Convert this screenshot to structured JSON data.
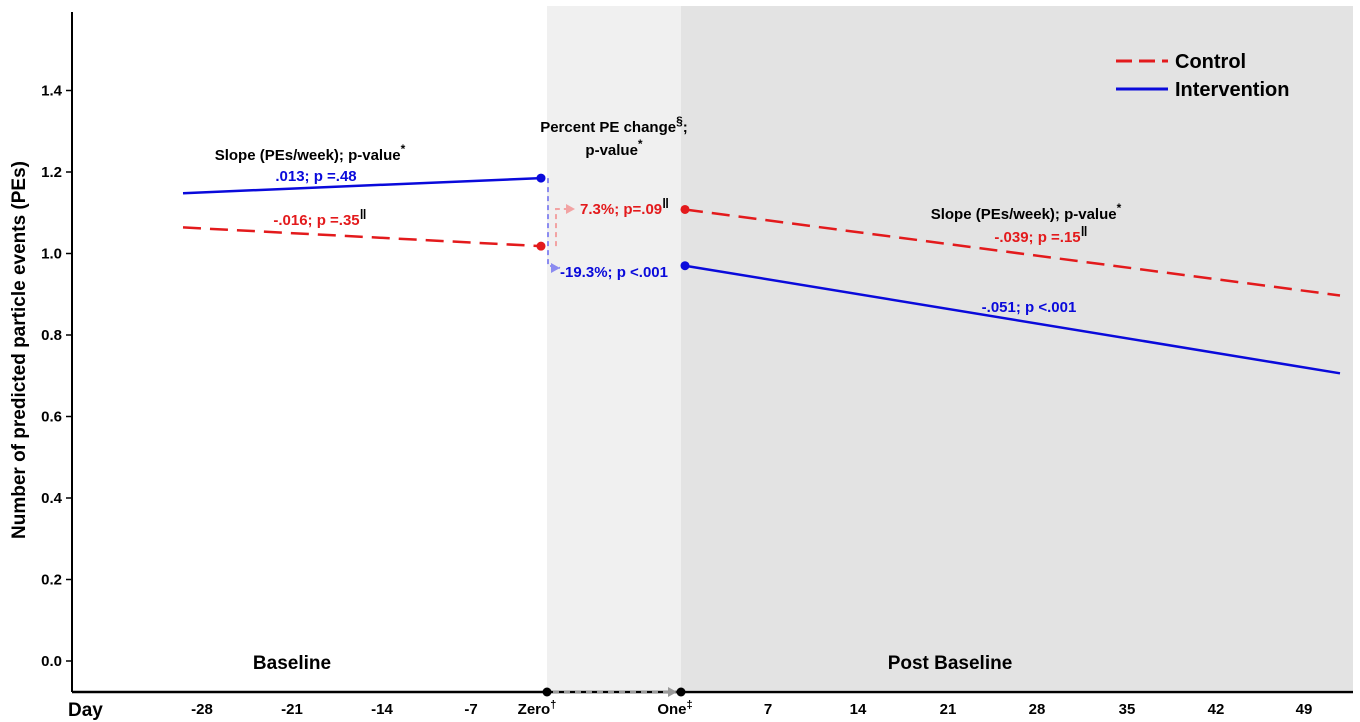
{
  "chart_data": {
    "type": "line",
    "ylabel": "Number of predicted particle events (PEs)",
    "xlabel_prefix": "Day",
    "ylim": [
      -0.07,
      1.6
    ],
    "yticks": [
      0.0,
      0.2,
      0.4,
      0.6,
      0.8,
      1.0,
      1.2,
      1.4
    ],
    "xticks_baseline": [
      -28,
      -21,
      -14,
      -7
    ],
    "xticks_post": [
      7,
      14,
      21,
      28,
      35,
      42,
      49
    ],
    "zero_label": "Zero",
    "zero_mark": "†",
    "one_label": "One",
    "one_mark": "‡",
    "regions": {
      "baseline": "Baseline",
      "post": "Post Baseline"
    },
    "legend": [
      {
        "name": "Control",
        "color": "#e31a1c",
        "dash": true
      },
      {
        "name": "Intervention",
        "color": "#0a0adb",
        "dash": false
      }
    ],
    "series": [
      {
        "name": "Control",
        "color": "#e31a1c",
        "baseline_start": 1.064,
        "baseline_end": 1.018,
        "post_start": 1.108,
        "post_end": 0.897
      },
      {
        "name": "Intervention",
        "color": "#0a0adb",
        "baseline_start": 1.148,
        "baseline_end": 1.185,
        "post_start": 0.97,
        "post_end": 0.706
      }
    ],
    "annotations": {
      "baseline_header": "Slope (PEs/week); p-value",
      "baseline_header_mark": "*",
      "baseline_intervention": ".013; p =.48",
      "baseline_control": "-.016; p =.35",
      "baseline_control_mark": "‖",
      "change_header_1": "Percent PE change",
      "change_header_1_mark": "§",
      "change_header_1_tail": ";",
      "change_header_2": "p-value",
      "change_header_2_mark": "*",
      "change_control": "7.3%; p=.09",
      "change_control_mark": "‖",
      "change_intervention": "-19.3%; p <.001",
      "post_header": "Slope (PEs/week); p-value",
      "post_header_mark": "*",
      "post_control": "-.039; p =.15",
      "post_control_mark": "‖",
      "post_intervention": "-.051; p <.001"
    }
  }
}
